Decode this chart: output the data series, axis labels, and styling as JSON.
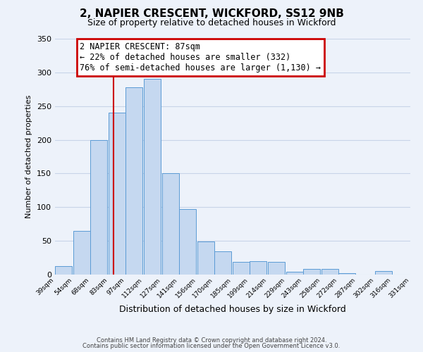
{
  "title": "2, NAPIER CRESCENT, WICKFORD, SS12 9NB",
  "subtitle": "Size of property relative to detached houses in Wickford",
  "xlabel": "Distribution of detached houses by size in Wickford",
  "ylabel": "Number of detached properties",
  "bar_left_edges": [
    39,
    54,
    68,
    83,
    97,
    112,
    127,
    141,
    156,
    170,
    185,
    199,
    214,
    229,
    243,
    258,
    272,
    287,
    302,
    316
  ],
  "bar_heights": [
    13,
    65,
    200,
    240,
    278,
    290,
    150,
    97,
    49,
    35,
    19,
    20,
    19,
    4,
    8,
    8,
    2,
    0,
    5,
    0
  ],
  "bin_width": 14,
  "last_edge": 331,
  "tick_labels": [
    "39sqm",
    "54sqm",
    "68sqm",
    "83sqm",
    "97sqm",
    "112sqm",
    "127sqm",
    "141sqm",
    "156sqm",
    "170sqm",
    "185sqm",
    "199sqm",
    "214sqm",
    "229sqm",
    "243sqm",
    "258sqm",
    "272sqm",
    "287sqm",
    "302sqm",
    "316sqm",
    "331sqm"
  ],
  "bar_color": "#c5d8f0",
  "bar_edge_color": "#5b9bd5",
  "grid_color": "#c8d4e8",
  "property_line_x": 87,
  "annotation_text": "2 NAPIER CRESCENT: 87sqm\n← 22% of detached houses are smaller (332)\n76% of semi-detached houses are larger (1,130) →",
  "annotation_box_color": "white",
  "annotation_border_color": "#cc0000",
  "vline_color": "#cc0000",
  "ylim": [
    0,
    350
  ],
  "yticks": [
    0,
    50,
    100,
    150,
    200,
    250,
    300,
    350
  ],
  "footer_line1": "Contains HM Land Registry data © Crown copyright and database right 2024.",
  "footer_line2": "Contains public sector information licensed under the Open Government Licence v3.0.",
  "background_color": "#edf2fa",
  "title_fontsize": 11,
  "subtitle_fontsize": 9
}
